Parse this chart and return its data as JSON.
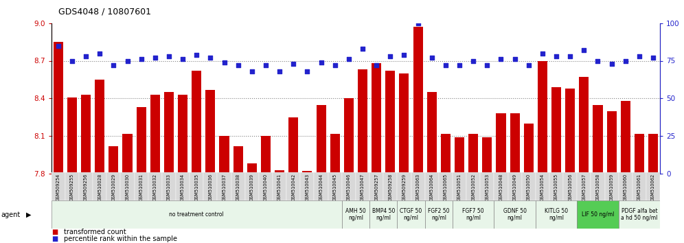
{
  "title": "GDS4048 / 10807601",
  "samples": [
    "GSM509254",
    "GSM509255",
    "GSM509256",
    "GSM510028",
    "GSM510029",
    "GSM510030",
    "GSM510031",
    "GSM510032",
    "GSM510033",
    "GSM510034",
    "GSM510035",
    "GSM510036",
    "GSM510037",
    "GSM510038",
    "GSM510039",
    "GSM510040",
    "GSM510041",
    "GSM510042",
    "GSM510043",
    "GSM510044",
    "GSM510045",
    "GSM510046",
    "GSM510047",
    "GSM509257",
    "GSM509258",
    "GSM509259",
    "GSM510063",
    "GSM510064",
    "GSM510065",
    "GSM510051",
    "GSM510052",
    "GSM510053",
    "GSM510048",
    "GSM510049",
    "GSM510050",
    "GSM510054",
    "GSM510055",
    "GSM510056",
    "GSM510057",
    "GSM510058",
    "GSM510059",
    "GSM510060",
    "GSM510061",
    "GSM510062"
  ],
  "bar_values": [
    8.85,
    8.41,
    8.43,
    8.55,
    8.02,
    8.12,
    8.33,
    8.43,
    8.45,
    8.43,
    8.62,
    8.47,
    8.1,
    8.02,
    7.88,
    8.1,
    7.83,
    8.25,
    7.82,
    8.35,
    8.12,
    8.4,
    8.63,
    8.68,
    8.62,
    8.6,
    8.97,
    8.45,
    8.12,
    8.09,
    8.12,
    8.09,
    8.28,
    8.28,
    8.2,
    8.7,
    8.49,
    8.48,
    8.57,
    8.35,
    8.3,
    8.38,
    8.12,
    8.12
  ],
  "percentile_values": [
    85,
    75,
    78,
    80,
    72,
    75,
    76,
    77,
    78,
    76,
    79,
    77,
    74,
    72,
    68,
    72,
    68,
    73,
    68,
    74,
    72,
    76,
    83,
    72,
    78,
    79,
    100,
    77,
    72,
    72,
    75,
    72,
    76,
    76,
    72,
    80,
    78,
    78,
    82,
    75,
    73,
    75,
    78,
    77
  ],
  "ylim_left": [
    7.8,
    9.0
  ],
  "ylim_right": [
    0,
    100
  ],
  "yticks_left": [
    7.8,
    8.1,
    8.4,
    8.7,
    9.0
  ],
  "yticks_right": [
    0,
    25,
    50,
    75,
    100
  ],
  "bar_color": "#cc0000",
  "dot_color": "#2222cc",
  "grid_values": [
    8.1,
    8.4,
    8.7
  ],
  "agent_groups": [
    {
      "label": "no treatment control",
      "start": 0,
      "end": 21,
      "bg": "#e8f5e9",
      "border": "#aaccaa"
    },
    {
      "label": "AMH 50\nng/ml",
      "start": 21,
      "end": 23,
      "bg": "#e8f5e9",
      "border": "#aaccaa"
    },
    {
      "label": "BMP4 50\nng/ml",
      "start": 23,
      "end": 25,
      "bg": "#e8f5e9",
      "border": "#aaccaa"
    },
    {
      "label": "CTGF 50\nng/ml",
      "start": 25,
      "end": 27,
      "bg": "#e8f5e9",
      "border": "#aaccaa"
    },
    {
      "label": "FGF2 50\nng/ml",
      "start": 27,
      "end": 29,
      "bg": "#e8f5e9",
      "border": "#aaccaa"
    },
    {
      "label": "FGF7 50\nng/ml",
      "start": 29,
      "end": 32,
      "bg": "#e8f5e9",
      "border": "#aaccaa"
    },
    {
      "label": "GDNF 50\nng/ml",
      "start": 32,
      "end": 35,
      "bg": "#e8f5e9",
      "border": "#aaccaa"
    },
    {
      "label": "KITLG 50\nng/ml",
      "start": 35,
      "end": 38,
      "bg": "#e8f5e9",
      "border": "#aaccaa"
    },
    {
      "label": "LIF 50 ng/ml",
      "start": 38,
      "end": 41,
      "bg": "#55cc55",
      "border": "#228822"
    },
    {
      "label": "PDGF alfa bet\na hd 50 ng/ml",
      "start": 41,
      "end": 44,
      "bg": "#e8f5e9",
      "border": "#aaccaa"
    }
  ],
  "legend_items": [
    {
      "color": "#cc0000",
      "label": "transformed count"
    },
    {
      "color": "#2222cc",
      "label": "percentile rank within the sample"
    }
  ]
}
